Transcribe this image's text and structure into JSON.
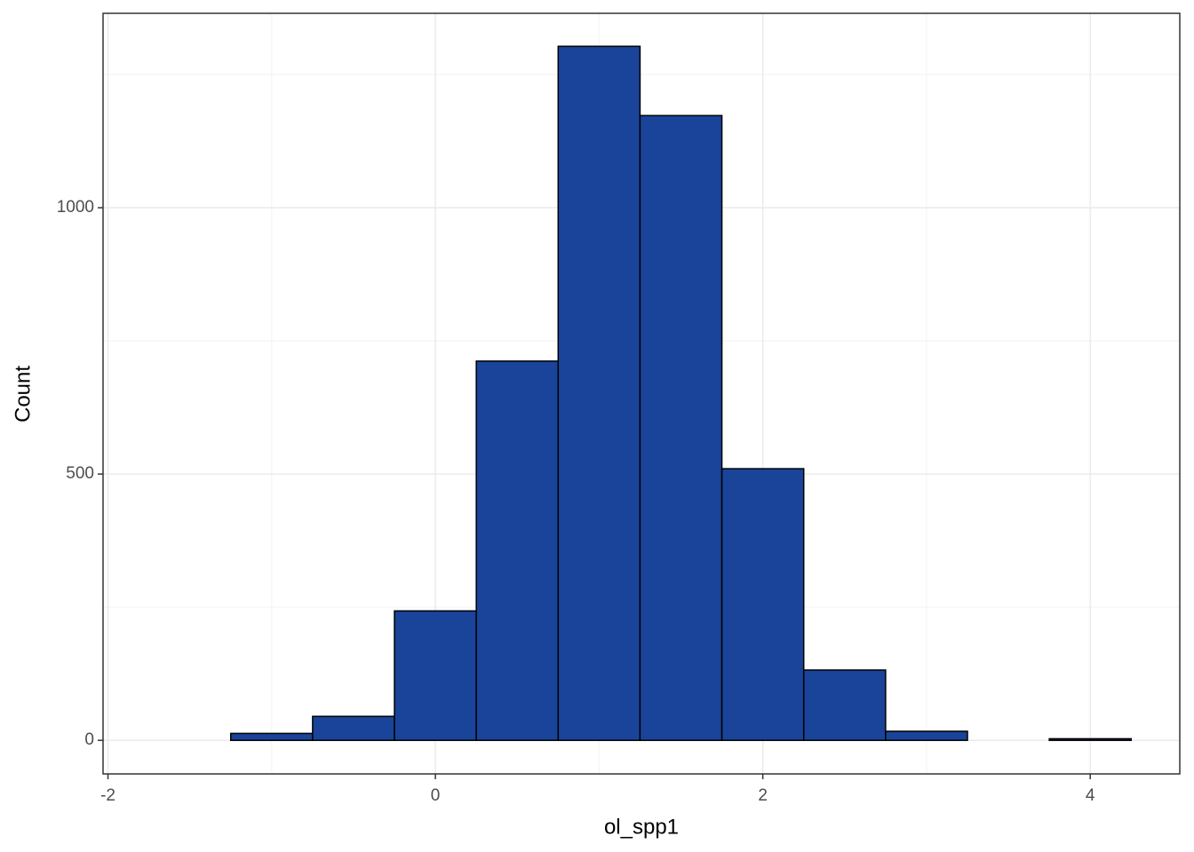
{
  "chart_data": {
    "type": "histogram",
    "x_label": "ol_spp1",
    "y_label": "Count",
    "bins": [
      -1.75,
      -1.25,
      -0.75,
      -0.25,
      0.25,
      0.75,
      1.25,
      1.75,
      2.25,
      2.75,
      3.25,
      3.75,
      4.25
    ],
    "values": [
      0,
      13,
      45,
      243,
      712,
      1303,
      1173,
      510,
      132,
      17,
      0,
      3
    ],
    "color": "#1a449a",
    "edge_color": "#000000",
    "xlim": [
      -2.03,
      4.547
    ],
    "ylim": [
      -63,
      1365
    ],
    "xticks": [
      -2,
      0,
      2,
      4
    ],
    "yticks": [
      0,
      500,
      1000
    ],
    "x_minor_grid": [
      -1,
      1,
      3
    ],
    "y_minor_grid": [
      250,
      750,
      1250
    ],
    "grid": true
  }
}
